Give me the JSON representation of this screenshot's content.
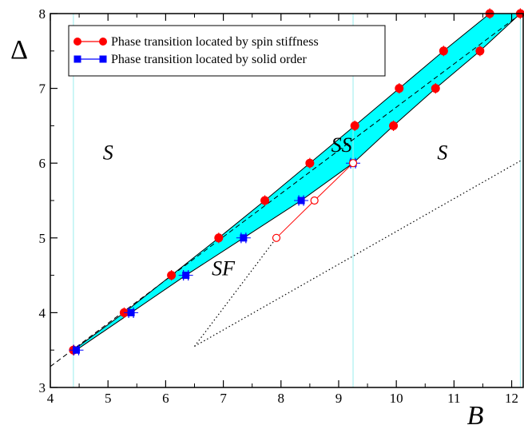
{
  "chart_data": {
    "type": "scatter",
    "xlabel": "B",
    "ylabel": "Δ",
    "xlim": [
      4,
      12.2
    ],
    "ylim": [
      3,
      8
    ],
    "x_ticks": [
      4,
      5,
      6,
      7,
      8,
      9,
      10,
      11,
      12
    ],
    "y_ticks": [
      3,
      4,
      5,
      6,
      7,
      8
    ],
    "grid": false,
    "legend_position": "top-left",
    "region_labels": [
      {
        "text": "S",
        "x": 5.0,
        "y": 6.05
      },
      {
        "text": "SS",
        "x": 9.05,
        "y": 6.15
      },
      {
        "text": "SF",
        "x": 7.0,
        "y": 4.5
      },
      {
        "text": "S",
        "x": 10.8,
        "y": 6.05
      }
    ],
    "series": [
      {
        "name": "Phase transition located by spin stiffness",
        "color": "#ff0000",
        "marker": "circle",
        "points": [
          {
            "x": 4.4,
            "y": 3.5
          },
          {
            "x": 5.28,
            "y": 4.0
          },
          {
            "x": 6.1,
            "y": 4.5
          },
          {
            "x": 6.92,
            "y": 5.0
          },
          {
            "x": 7.72,
            "y": 5.5
          },
          {
            "x": 8.5,
            "y": 6.0
          },
          {
            "x": 9.28,
            "y": 6.5
          },
          {
            "x": 10.05,
            "y": 7.0
          },
          {
            "x": 10.82,
            "y": 7.5
          },
          {
            "x": 11.62,
            "y": 8.0
          },
          {
            "x": 12.15,
            "y": 8.0
          },
          {
            "x": 11.45,
            "y": 7.5
          },
          {
            "x": 10.68,
            "y": 7.0
          },
          {
            "x": 9.95,
            "y": 6.5
          }
        ]
      },
      {
        "name": "Phase transition located by solid order",
        "color": "#0000ff",
        "marker": "square",
        "points": [
          {
            "x": 4.45,
            "y": 3.5
          },
          {
            "x": 5.4,
            "y": 4.0
          },
          {
            "x": 6.35,
            "y": 4.5
          },
          {
            "x": 7.35,
            "y": 5.0
          },
          {
            "x": 8.35,
            "y": 5.5
          },
          {
            "x": 9.25,
            "y": 6.0
          }
        ]
      },
      {
        "name": "",
        "color": "#ff0000",
        "marker": "open-circle",
        "points": [
          {
            "x": 7.92,
            "y": 5.0
          },
          {
            "x": 8.58,
            "y": 5.5
          },
          {
            "x": 9.25,
            "y": 6.0
          }
        ]
      }
    ],
    "dashed_line": {
      "color": "#000000",
      "points": [
        {
          "x": 4.0,
          "y": 3.28
        },
        {
          "x": 12.2,
          "y": 8.02
        }
      ]
    },
    "dotted_lines": {
      "color": "#000000",
      "lines": [
        [
          {
            "x": 6.5,
            "y": 3.55
          },
          {
            "x": 7.92,
            "y": 5.0
          }
        ],
        [
          {
            "x": 6.5,
            "y": 3.55
          },
          {
            "x": 12.15,
            "y": 6.03
          }
        ]
      ]
    },
    "shaded_region": {
      "color": "#00ffff",
      "upper": [
        {
          "x": 4.4,
          "y": 3.5
        },
        {
          "x": 5.28,
          "y": 4.0
        },
        {
          "x": 6.1,
          "y": 4.5
        },
        {
          "x": 6.92,
          "y": 5.0
        },
        {
          "x": 7.72,
          "y": 5.5
        },
        {
          "x": 8.5,
          "y": 6.0
        },
        {
          "x": 9.28,
          "y": 6.5
        },
        {
          "x": 10.05,
          "y": 7.0
        },
        {
          "x": 10.82,
          "y": 7.5
        },
        {
          "x": 11.62,
          "y": 8.0
        },
        {
          "x": 12.15,
          "y": 8.0
        }
      ],
      "lower": [
        {
          "x": 4.45,
          "y": 3.5
        },
        {
          "x": 5.4,
          "y": 4.0
        },
        {
          "x": 6.35,
          "y": 4.5
        },
        {
          "x": 7.35,
          "y": 5.0
        },
        {
          "x": 8.35,
          "y": 5.5
        },
        {
          "x": 9.25,
          "y": 6.0
        },
        {
          "x": 9.95,
          "y": 6.5
        },
        {
          "x": 10.68,
          "y": 7.0
        },
        {
          "x": 11.45,
          "y": 7.5
        },
        {
          "x": 12.15,
          "y": 8.0
        }
      ]
    },
    "vertical_guides": {
      "color": "#99eeee",
      "x": [
        4.4,
        9.25,
        12.15
      ]
    }
  }
}
